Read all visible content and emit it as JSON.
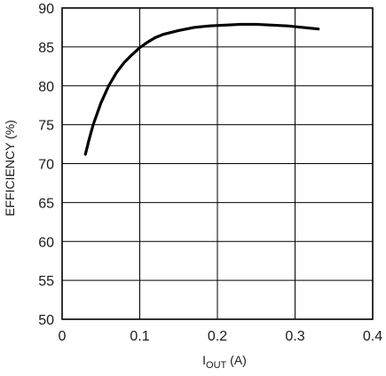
{
  "chart_data": {
    "type": "line",
    "title": "",
    "xlabel": "I",
    "xlabel_sub": "OUT",
    "xlabel_unit": " (A)",
    "ylabel": "EFFICIENCY (%)",
    "xlim": [
      0,
      0.4
    ],
    "ylim": [
      50,
      90
    ],
    "grid": true,
    "x_ticks": [
      0,
      0.1,
      0.2,
      0.3,
      0.4
    ],
    "x_tick_labels": [
      "0",
      "0.1",
      "0.2",
      "0.3",
      "0.4"
    ],
    "y_ticks": [
      50,
      55,
      60,
      65,
      70,
      75,
      80,
      85,
      90
    ],
    "y_tick_labels": [
      "50",
      "55",
      "60",
      "65",
      "70",
      "75",
      "80",
      "85",
      "90"
    ],
    "series": [
      {
        "color": "#000000",
        "x": [
          0.03,
          0.035,
          0.04,
          0.05,
          0.06,
          0.07,
          0.08,
          0.09,
          0.1,
          0.11,
          0.12,
          0.13,
          0.15,
          0.17,
          0.19,
          0.21,
          0.23,
          0.25,
          0.27,
          0.29,
          0.31,
          0.33
        ],
        "y": [
          71.2,
          73.2,
          75.0,
          77.8,
          80.0,
          81.7,
          83.0,
          84.0,
          84.9,
          85.6,
          86.2,
          86.6,
          87.1,
          87.5,
          87.7,
          87.8,
          87.9,
          87.9,
          87.8,
          87.7,
          87.5,
          87.3
        ]
      }
    ]
  }
}
